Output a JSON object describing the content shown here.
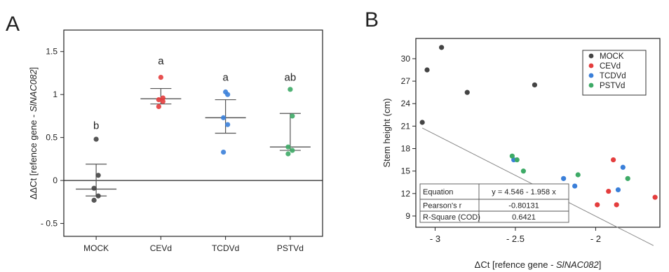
{
  "colors": {
    "MOCK": "#444444",
    "CEVd": "#e43d3d",
    "TCDVd": "#3a7fd9",
    "PSTVd": "#3daa66",
    "axis": "#222222",
    "errorbar": "#555555",
    "trendline": "#888888"
  },
  "panel_a": {
    "letter": "A"
  },
  "panel_b": {
    "letter": "B"
  },
  "chart_data": [
    {
      "type": "scatter",
      "panel": "A",
      "ylabel_prefix": "ΔΔCt [refence gene - ",
      "ylabel_gene": "SlNAC082",
      "ylabel_suffix": "]",
      "ylim": [
        -0.65,
        1.75
      ],
      "yticks": [
        -0.5,
        0,
        0.5,
        1,
        1.5
      ],
      "yticklabels": [
        "- 0.5",
        "0",
        "0.5",
        "1",
        "1.5"
      ],
      "zero_line": true,
      "categories": [
        "MOCK",
        "CEVd",
        "TCDVd",
        "PSTVd"
      ],
      "letters": [
        "b",
        "a",
        "a",
        "ab"
      ],
      "letter_y": [
        0.6,
        1.35,
        1.16,
        1.16
      ],
      "series": [
        {
          "name": "MOCK",
          "points": [
            0.48,
            0.06,
            -0.09,
            -0.18,
            -0.23
          ],
          "mean": -0.1,
          "err_low": -0.18,
          "err_high": 0.19
        },
        {
          "name": "CEVd",
          "points": [
            1.2,
            0.96,
            0.94,
            0.92,
            0.86
          ],
          "mean": 0.95,
          "err_low": 0.89,
          "err_high": 1.07
        },
        {
          "name": "TCDVd",
          "points": [
            1.03,
            1.0,
            0.73,
            0.65,
            0.33
          ],
          "mean": 0.73,
          "err_low": 0.55,
          "err_high": 0.94
        },
        {
          "name": "PSTVd",
          "points": [
            1.06,
            0.75,
            0.39,
            0.35,
            0.31
          ],
          "mean": 0.39,
          "err_low": 0.35,
          "err_high": 0.78
        }
      ]
    },
    {
      "type": "scatter",
      "panel": "B",
      "xlabel_prefix": "ΔCt [refence gene - ",
      "xlabel_gene": "SlNAC082",
      "xlabel_suffix": "]",
      "ylabel": "Stem height (cm)",
      "xlim": [
        -3.12,
        -1.6
      ],
      "ylim": [
        7.5,
        32.7
      ],
      "xticks": [
        -3,
        -2.5,
        -2
      ],
      "xticklabels": [
        "- 3",
        "- 2.5",
        "- 2"
      ],
      "yticks": [
        9,
        12,
        15,
        18,
        21,
        24,
        27,
        30
      ],
      "legend_position": "top-right",
      "series": [
        {
          "name": "MOCK",
          "x": [
            -2.96,
            -3.05,
            -3.08,
            -2.8,
            -2.38
          ],
          "y": [
            31.5,
            28.5,
            21.5,
            25.5,
            26.5
          ]
        },
        {
          "name": "CEVd",
          "x": [
            -1.89,
            -1.92,
            -1.99,
            -1.87,
            -1.63
          ],
          "y": [
            16.5,
            12.3,
            10.5,
            10.5,
            11.5
          ]
        },
        {
          "name": "TCDVd",
          "x": [
            -2.51,
            -2.2,
            -2.13,
            -1.86,
            -1.83
          ],
          "y": [
            16.5,
            14.0,
            13.0,
            12.5,
            15.5
          ]
        },
        {
          "name": "PSTVd",
          "x": [
            -2.52,
            -2.49,
            -2.45,
            -2.11,
            -1.8
          ],
          "y": [
            17.0,
            16.5,
            15.0,
            14.5,
            14.0
          ]
        }
      ],
      "trendline": {
        "x": [
          -3.08,
          -1.64
        ],
        "intercept": 4.546,
        "slope": -1.958
      },
      "stats_table": {
        "rows": [
          [
            "Equation",
            "y = 4.546 - 1.958 x"
          ],
          [
            "Pearson's r",
            "-0.80131"
          ],
          [
            "R-Square (COD)",
            "0.6421"
          ]
        ]
      }
    }
  ]
}
